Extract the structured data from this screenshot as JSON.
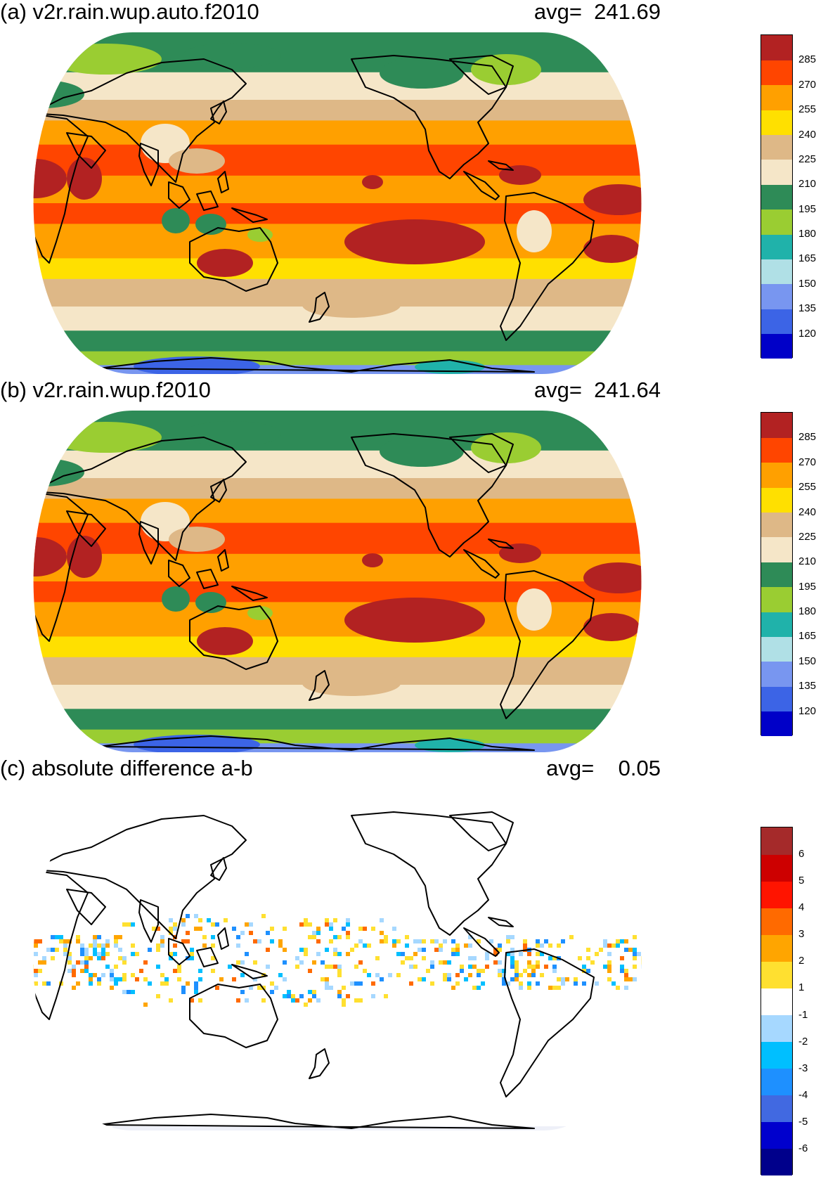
{
  "panels": [
    {
      "title": "(a) v2r.rain.wup.auto.f2010",
      "avg_label": "avg=  241.69",
      "colorbar": {
        "colors": [
          "#0000c8",
          "#3c64e6",
          "#7896f0",
          "#b0e0e6",
          "#20b2aa",
          "#9acd32",
          "#2e8b57",
          "#f5e6c8",
          "#deb887",
          "#ffe000",
          "#ffa000",
          "#ff4500",
          "#b22222"
        ],
        "labels": [
          "120",
          "135",
          "150",
          "165",
          "180",
          "195",
          "210",
          "225",
          "240",
          "255",
          "270",
          "285"
        ]
      }
    },
    {
      "title": "(b) v2r.rain.wup.f2010",
      "avg_label": "avg=  241.64",
      "colorbar": {
        "colors": [
          "#0000c8",
          "#3c64e6",
          "#7896f0",
          "#b0e0e6",
          "#20b2aa",
          "#9acd32",
          "#2e8b57",
          "#f5e6c8",
          "#deb887",
          "#ffe000",
          "#ffa000",
          "#ff4500",
          "#b22222"
        ],
        "labels": [
          "120",
          "135",
          "150",
          "165",
          "180",
          "195",
          "210",
          "225",
          "240",
          "255",
          "270",
          "285"
        ]
      }
    },
    {
      "title": "(c) absolute difference a-b",
      "avg_label": "avg=    0.05",
      "colorbar": {
        "colors": [
          "#00008b",
          "#0000cd",
          "#4169e1",
          "#1e90ff",
          "#00bfff",
          "#a6d8ff",
          "#ffffff",
          "#ffe030",
          "#ffa500",
          "#ff6a00",
          "#ff1400",
          "#cd0000",
          "#a52a2a"
        ],
        "labels": [
          "-6",
          "-5",
          "-4",
          "-3",
          "-2",
          "-1",
          "1",
          "2",
          "3",
          "4",
          "5",
          "6"
        ]
      }
    }
  ]
}
